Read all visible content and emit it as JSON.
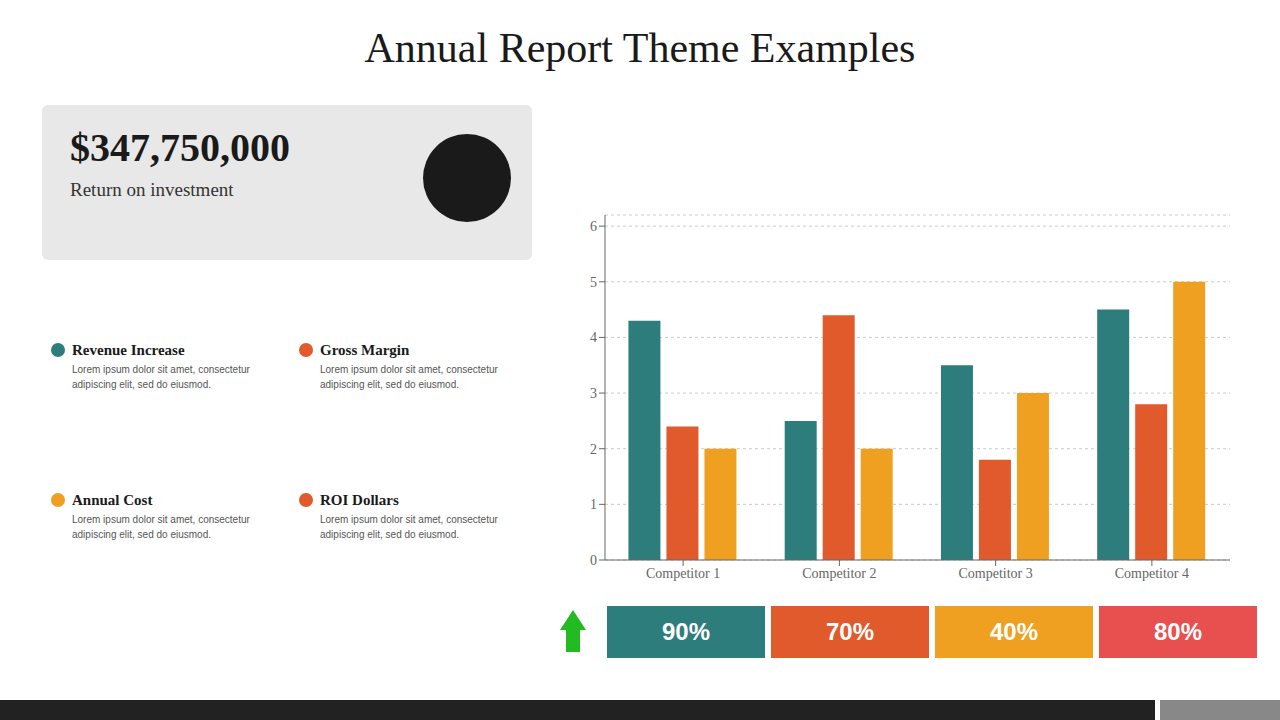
{
  "chart_data": {
    "type": "bar",
    "title": "Annual Report Theme Examples",
    "categories": [
      "Competitor 1",
      "Competitor 2",
      "Competitor 3",
      "Competitor 4"
    ],
    "series": [
      {
        "name": "Revenue",
        "color": "#2e7d7d",
        "values": [
          4.3,
          2.5,
          3.5,
          4.5
        ]
      },
      {
        "name": "Gross Margin",
        "color": "#e05a2b",
        "values": [
          2.4,
          4.4,
          1.8,
          2.8
        ]
      },
      {
        "name": "Annual Cost",
        "color": "#f0a020",
        "values": [
          2.0,
          2.0,
          3.0,
          5.0
        ]
      }
    ],
    "ylim": [
      0,
      6.2
    ],
    "yticks": [
      0,
      1,
      2,
      3,
      4,
      5,
      6
    ],
    "grid": true,
    "annotations": [
      {
        "text": "$347,750,000"
      },
      {
        "text": "Return on investment"
      },
      {
        "text": "Revenue Increase",
        "color": "#2e7d7d",
        "description": [
          "Lorem ipsum dolor sit amet, consectetur",
          "adipiscing elit, sed do eiusmod."
        ]
      },
      {
        "text": "Gross Margin",
        "color": "#e05a2b",
        "description": [
          "Lorem ipsum dolor sit amet, consectetur",
          "adipiscing elit, sed do eiusmod."
        ]
      },
      {
        "text": "Annual Cost",
        "color": "#f0a020",
        "description": [
          "Lorem ipsum dolor sit amet, consectetur",
          "adipiscing elit, sed do eiusmod."
        ]
      },
      {
        "text": "ROI Dollars",
        "color": "#e05a2b",
        "description": [
          "Lorem ipsum dolor sit amet, consectetur",
          "adipiscing elit, sed do eiusmod."
        ]
      },
      {
        "value": 90,
        "label": "90%",
        "color": "#2e7d7d"
      },
      {
        "value": 70,
        "label": "70%",
        "color": "#e05a2b"
      },
      {
        "value": 40,
        "label": "40%",
        "color": "#f0a020"
      },
      {
        "value": 80,
        "label": "80%",
        "color": "#e85050"
      }
    ]
  }
}
